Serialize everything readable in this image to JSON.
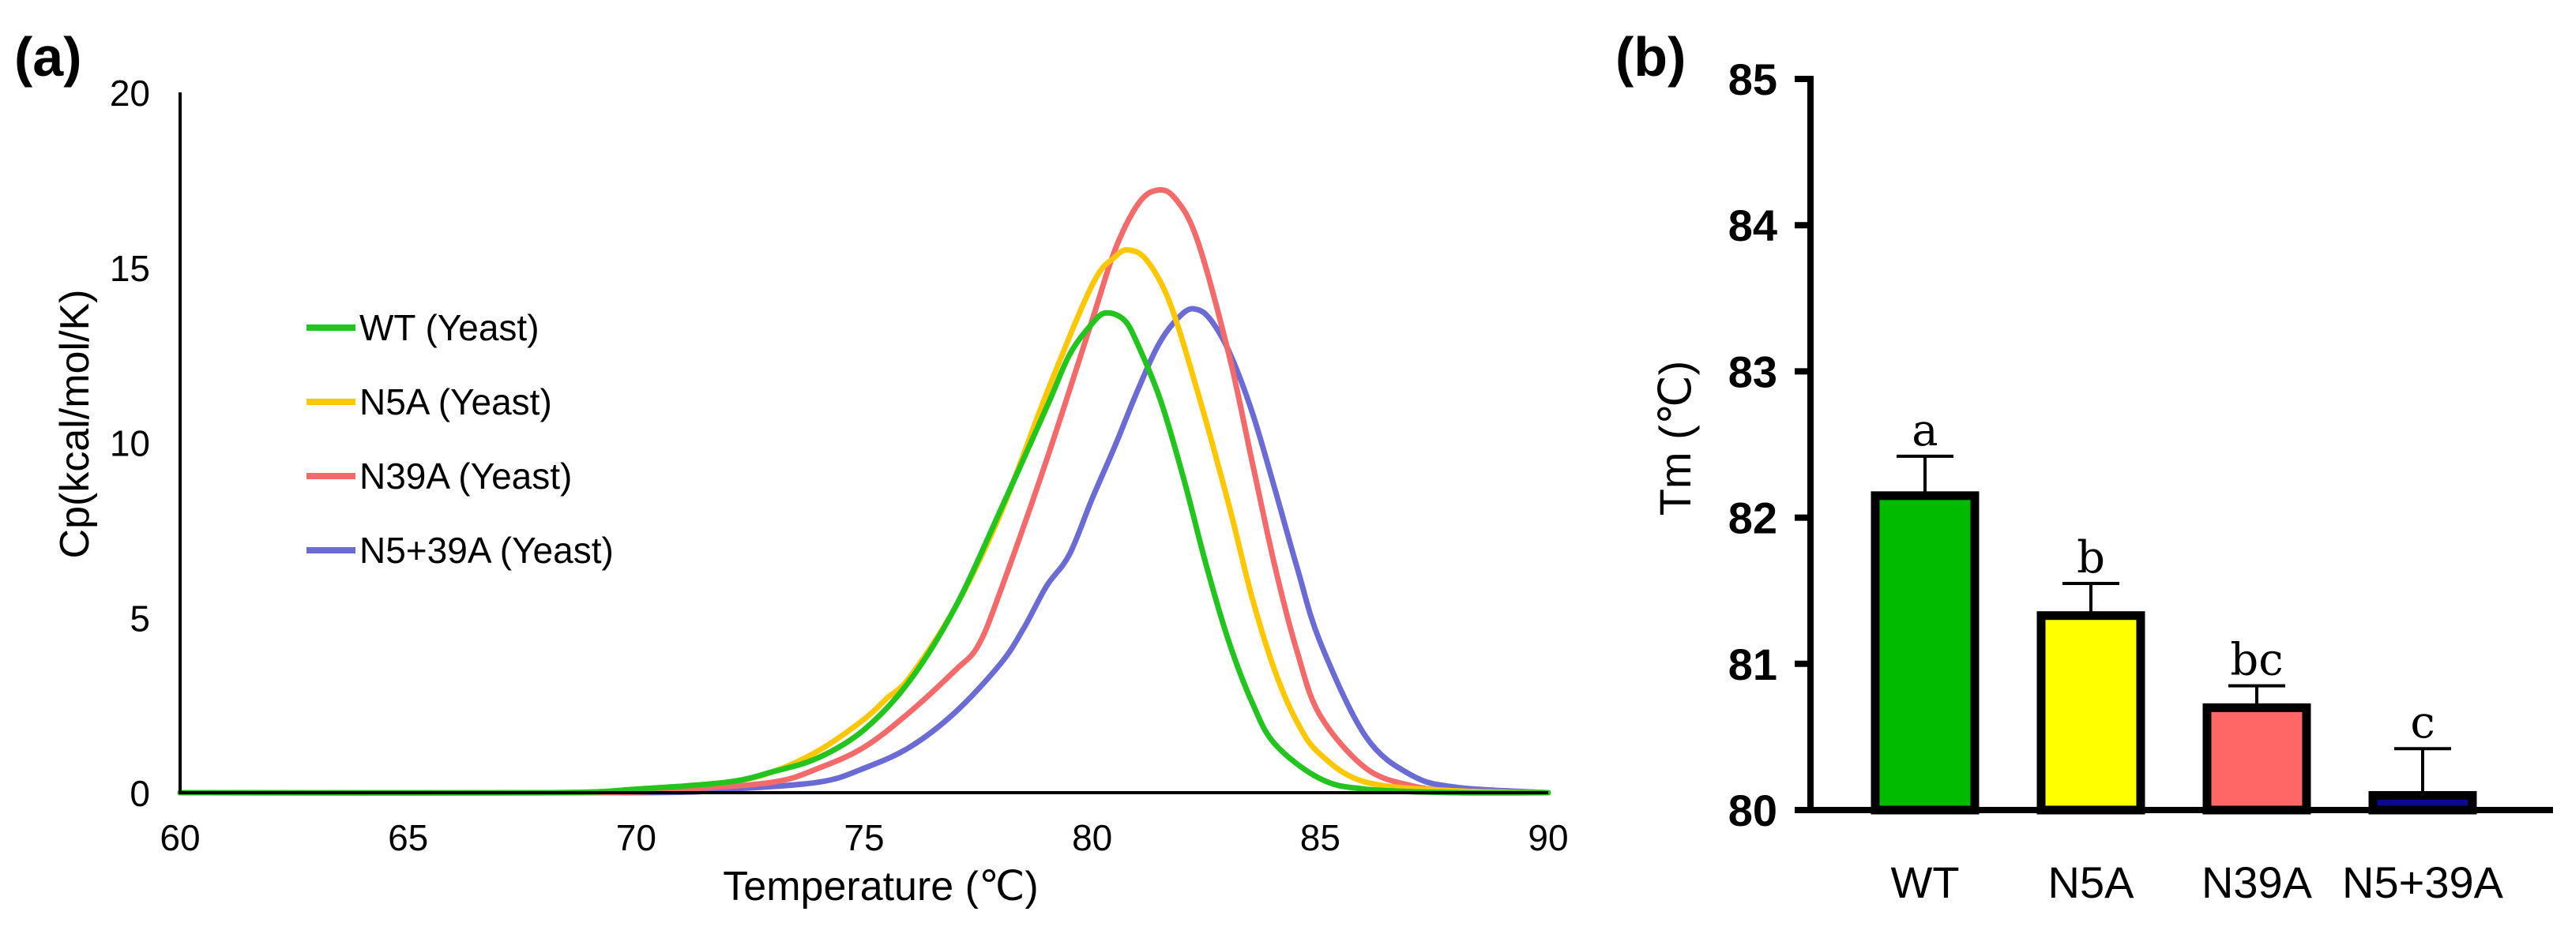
{
  "chart_data": [
    {
      "panel": "(a)",
      "type": "line",
      "xlabel": "Temperature (℃)",
      "ylabel": "Cp(kcal/mol/K)",
      "xlim": [
        60,
        90
      ],
      "ylim": [
        0,
        20
      ],
      "xticks": [
        "60",
        "65",
        "70",
        "75",
        "80",
        "85",
        "90"
      ],
      "yticks": [
        "0",
        "5",
        "10",
        "15",
        "20"
      ],
      "legend_position": "upper-left",
      "series": [
        {
          "name": "WT (Yeast)",
          "color": "#22c41e",
          "x": [
            60,
            68,
            70,
            72,
            73,
            74,
            75,
            76,
            77,
            78,
            79,
            79.5,
            80,
            80.3,
            80.7,
            81,
            81.5,
            82,
            82.5,
            83,
            83.5,
            84,
            85,
            86,
            88,
            90
          ],
          "y": [
            0,
            0,
            0.1,
            0.3,
            0.6,
            1.0,
            1.8,
            3.2,
            5.3,
            8.1,
            11.0,
            12.5,
            13.4,
            13.7,
            13.5,
            12.8,
            11.2,
            9.0,
            6.5,
            4.3,
            2.6,
            1.4,
            0.4,
            0.1,
            0,
            0
          ]
        },
        {
          "name": "N5A (Yeast)",
          "color": "#ffc700",
          "x": [
            60,
            68,
            70,
            72,
            73,
            74,
            75,
            75.5,
            76,
            77,
            78,
            79,
            80,
            80.5,
            80.8,
            81.2,
            81.7,
            82.3,
            83,
            83.5,
            84,
            84.5,
            85,
            86,
            88,
            90
          ],
          "y": [
            0,
            0,
            0.1,
            0.3,
            0.6,
            1.2,
            2.1,
            2.7,
            3.3,
            5.3,
            8.0,
            11.4,
            14.5,
            15.3,
            15.5,
            15.2,
            14.0,
            11.5,
            8.2,
            5.6,
            3.5,
            2.0,
            1.1,
            0.3,
            0.05,
            0
          ]
        },
        {
          "name": "N39A (Yeast)",
          "color": "#f46a6a",
          "x": [
            60,
            69,
            71,
            73,
            74,
            75,
            76,
            77,
            77.5,
            78,
            79,
            80,
            80.5,
            81,
            81.4,
            81.8,
            82.3,
            83,
            83.5,
            84,
            84.5,
            85,
            86,
            87,
            88,
            90
          ],
          "y": [
            0,
            0,
            0.1,
            0.3,
            0.7,
            1.3,
            2.3,
            3.5,
            4.2,
            5.8,
            9.5,
            13.5,
            15.5,
            16.8,
            17.2,
            17.0,
            15.8,
            12.5,
            9.5,
            6.5,
            4.0,
            2.2,
            0.7,
            0.2,
            0.05,
            0
          ]
        },
        {
          "name": "N5+39A (Yeast)",
          "color": "#6b6bd6",
          "x": [
            60,
            70,
            72,
            74,
            75,
            76,
            77,
            78,
            78.5,
            79,
            79.5,
            80,
            80.5,
            81,
            81.5,
            82,
            82.3,
            82.6,
            83,
            83.5,
            84,
            84.5,
            85,
            86,
            87,
            88,
            90
          ],
          "y": [
            0,
            0,
            0.1,
            0.3,
            0.7,
            1.3,
            2.3,
            3.7,
            4.7,
            5.9,
            6.8,
            8.4,
            9.9,
            11.5,
            12.9,
            13.7,
            13.8,
            13.5,
            12.6,
            10.9,
            8.7,
            6.4,
            4.3,
            1.6,
            0.5,
            0.15,
            0
          ]
        }
      ]
    },
    {
      "panel": "(b)",
      "type": "bar",
      "ylabel": "Tm (℃)",
      "ylim": [
        80,
        85
      ],
      "yticks": [
        "80",
        "81",
        "82",
        "83",
        "84",
        "85"
      ],
      "categories": [
        "WT",
        "N5A",
        "N39A",
        "N5+39A"
      ],
      "values": [
        82.15,
        81.33,
        80.7,
        80.1
      ],
      "errors": [
        0.27,
        0.22,
        0.15,
        0.32
      ],
      "significance": [
        "a",
        "b",
        "bc",
        "c"
      ],
      "colors": [
        "#00bb00",
        "#ffff00",
        "#ff6666",
        "#0a0a8c"
      ]
    }
  ]
}
